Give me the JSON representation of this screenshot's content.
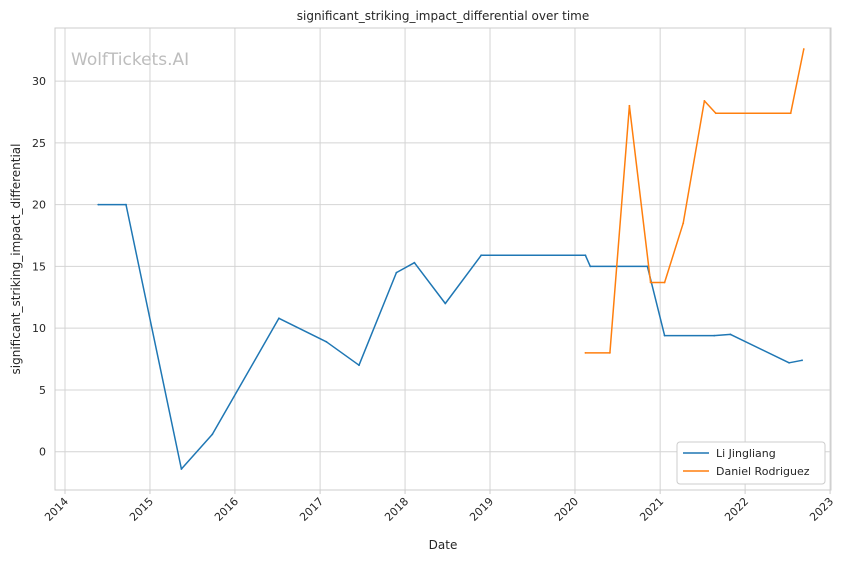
{
  "chart_data": {
    "type": "line",
    "title": "significant_striking_impact_differential over time",
    "xlabel": "Date",
    "ylabel": "significant_striking_impact_differential",
    "watermark": "WolfTickets.AI",
    "xlim": [
      "2013-11-19",
      "2023-01-05"
    ],
    "ylim": [
      -3.1,
      34.3
    ],
    "x_ticks": [
      "2014",
      "2015",
      "2016",
      "2017",
      "2018",
      "2019",
      "2020",
      "2021",
      "2022",
      "2023"
    ],
    "y_ticks": [
      0,
      5,
      10,
      15,
      20,
      25,
      30
    ],
    "grid": true,
    "legend_position": "bottom-right",
    "series": [
      {
        "name": "Li Jingliang",
        "color": "#1f77b4",
        "points": [
          {
            "x": "2014-05-24",
            "y": 20.0
          },
          {
            "x": "2014-09-20",
            "y": 20.0
          },
          {
            "x": "2015-05-16",
            "y": -1.4
          },
          {
            "x": "2015-09-26",
            "y": 1.4
          },
          {
            "x": "2016-07-08",
            "y": 10.8
          },
          {
            "x": "2017-01-28",
            "y": 8.9
          },
          {
            "x": "2017-06-17",
            "y": 7.0
          },
          {
            "x": "2017-11-25",
            "y": 14.5
          },
          {
            "x": "2018-02-10",
            "y": 15.3
          },
          {
            "x": "2018-06-23",
            "y": 12.0
          },
          {
            "x": "2018-11-24",
            "y": 15.9
          },
          {
            "x": "2020-02-15",
            "y": 15.9
          },
          {
            "x": "2020-03-07",
            "y": 15.0
          },
          {
            "x": "2020-11-07",
            "y": 15.0
          },
          {
            "x": "2021-01-20",
            "y": 9.4
          },
          {
            "x": "2021-08-21",
            "y": 9.4
          },
          {
            "x": "2021-10-30",
            "y": 9.5
          },
          {
            "x": "2022-07-09",
            "y": 7.2
          },
          {
            "x": "2022-09-03",
            "y": 7.4
          }
        ]
      },
      {
        "name": "Daniel Rodriguez",
        "color": "#ff7f0e",
        "points": [
          {
            "x": "2020-02-15",
            "y": 8.0
          },
          {
            "x": "2020-05-30",
            "y": 8.0
          },
          {
            "x": "2020-08-22",
            "y": 28.0
          },
          {
            "x": "2020-11-21",
            "y": 13.7
          },
          {
            "x": "2021-01-20",
            "y": 13.7
          },
          {
            "x": "2021-04-10",
            "y": 18.5
          },
          {
            "x": "2021-07-10",
            "y": 28.4
          },
          {
            "x": "2021-08-28",
            "y": 27.4
          },
          {
            "x": "2022-07-16",
            "y": 27.4
          },
          {
            "x": "2022-09-10",
            "y": 32.6
          }
        ]
      }
    ]
  }
}
